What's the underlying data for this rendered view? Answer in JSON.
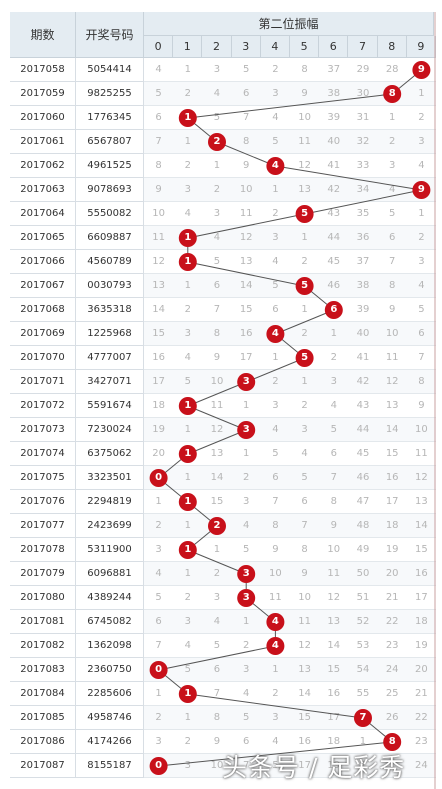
{
  "header": {
    "period_label": "期数",
    "number_label": "开奖号码",
    "title": "第二位振幅",
    "digits": [
      "0",
      "1",
      "2",
      "3",
      "4",
      "5",
      "6",
      "7",
      "8",
      "9"
    ]
  },
  "colors": {
    "ball": "#c8101a",
    "line": "#555555",
    "header_bg": "#e4ecf2"
  },
  "chart_data": {
    "type": "table",
    "title": "第二位振幅",
    "columns": [
      "0",
      "1",
      "2",
      "3",
      "4",
      "5",
      "6",
      "7",
      "8",
      "9"
    ],
    "rows": [
      {
        "period": "2017058",
        "number": "5054414",
        "value": 9,
        "cells": [
          "4",
          "1",
          "3",
          "5",
          "2",
          "8",
          "37",
          "29",
          "28",
          "9"
        ]
      },
      {
        "period": "2017059",
        "number": "9825255",
        "value": 8,
        "cells": [
          "5",
          "2",
          "4",
          "6",
          "3",
          "9",
          "38",
          "30",
          "8",
          "1"
        ]
      },
      {
        "period": "2017060",
        "number": "1776345",
        "value": 1,
        "cells": [
          "6",
          "1",
          "5",
          "7",
          "4",
          "10",
          "39",
          "31",
          "1",
          "2"
        ]
      },
      {
        "period": "2017061",
        "number": "6567807",
        "value": 2,
        "cells": [
          "7",
          "1",
          "2",
          "8",
          "5",
          "11",
          "40",
          "32",
          "2",
          "3"
        ]
      },
      {
        "period": "2017062",
        "number": "4961525",
        "value": 4,
        "cells": [
          "8",
          "2",
          "1",
          "9",
          "4",
          "12",
          "41",
          "33",
          "3",
          "4"
        ]
      },
      {
        "period": "2017063",
        "number": "9078693",
        "value": 9,
        "cells": [
          "9",
          "3",
          "2",
          "10",
          "1",
          "13",
          "42",
          "34",
          "4",
          "9"
        ]
      },
      {
        "period": "2017064",
        "number": "5550082",
        "value": 5,
        "cells": [
          "10",
          "4",
          "3",
          "11",
          "2",
          "5",
          "43",
          "35",
          "5",
          "1"
        ]
      },
      {
        "period": "2017065",
        "number": "6609887",
        "value": 1,
        "cells": [
          "11",
          "1",
          "4",
          "12",
          "3",
          "1",
          "44",
          "36",
          "6",
          "2"
        ]
      },
      {
        "period": "2017066",
        "number": "4560789",
        "value": 1,
        "cells": [
          "12",
          "1",
          "5",
          "13",
          "4",
          "2",
          "45",
          "37",
          "7",
          "3"
        ]
      },
      {
        "period": "2017067",
        "number": "0030793",
        "value": 5,
        "cells": [
          "13",
          "1",
          "6",
          "14",
          "5",
          "5",
          "46",
          "38",
          "8",
          "4"
        ]
      },
      {
        "period": "2017068",
        "number": "3635318",
        "value": 6,
        "cells": [
          "14",
          "2",
          "7",
          "15",
          "6",
          "1",
          "6",
          "39",
          "9",
          "5"
        ]
      },
      {
        "period": "2017069",
        "number": "1225968",
        "value": 4,
        "cells": [
          "15",
          "3",
          "8",
          "16",
          "4",
          "2",
          "1",
          "40",
          "10",
          "6"
        ]
      },
      {
        "period": "2017070",
        "number": "4777007",
        "value": 5,
        "cells": [
          "16",
          "4",
          "9",
          "17",
          "1",
          "5",
          "2",
          "41",
          "11",
          "7"
        ]
      },
      {
        "period": "2017071",
        "number": "3427071",
        "value": 3,
        "cells": [
          "17",
          "5",
          "10",
          "3",
          "2",
          "1",
          "3",
          "42",
          "12",
          "8"
        ]
      },
      {
        "period": "2017072",
        "number": "5591674",
        "value": 1,
        "cells": [
          "18",
          "1",
          "11",
          "1",
          "3",
          "2",
          "4",
          "43",
          "13",
          "9"
        ]
      },
      {
        "period": "2017073",
        "number": "7230024",
        "value": 3,
        "cells": [
          "19",
          "1",
          "12",
          "3",
          "4",
          "3",
          "5",
          "44",
          "14",
          "10"
        ]
      },
      {
        "period": "2017074",
        "number": "6375062",
        "value": 1,
        "cells": [
          "20",
          "1",
          "13",
          "1",
          "5",
          "4",
          "6",
          "45",
          "15",
          "11"
        ]
      },
      {
        "period": "2017075",
        "number": "3323501",
        "value": 0,
        "cells": [
          "0",
          "1",
          "14",
          "2",
          "6",
          "5",
          "7",
          "46",
          "16",
          "12"
        ]
      },
      {
        "period": "2017076",
        "number": "2294819",
        "value": 1,
        "cells": [
          "1",
          "1",
          "15",
          "3",
          "7",
          "6",
          "8",
          "47",
          "17",
          "13"
        ]
      },
      {
        "period": "2017077",
        "number": "2423699",
        "value": 2,
        "cells": [
          "2",
          "1",
          "2",
          "4",
          "8",
          "7",
          "9",
          "48",
          "18",
          "14"
        ]
      },
      {
        "period": "2017078",
        "number": "5311900",
        "value": 1,
        "cells": [
          "3",
          "1",
          "1",
          "5",
          "9",
          "8",
          "10",
          "49",
          "19",
          "15"
        ]
      },
      {
        "period": "2017079",
        "number": "6096881",
        "value": 3,
        "cells": [
          "4",
          "1",
          "2",
          "3",
          "10",
          "9",
          "11",
          "50",
          "20",
          "16"
        ]
      },
      {
        "period": "2017080",
        "number": "4389244",
        "value": 3,
        "cells": [
          "5",
          "2",
          "3",
          "3",
          "11",
          "10",
          "12",
          "51",
          "21",
          "17"
        ]
      },
      {
        "period": "2017081",
        "number": "6745082",
        "value": 4,
        "cells": [
          "6",
          "3",
          "4",
          "1",
          "4",
          "11",
          "13",
          "52",
          "22",
          "18"
        ]
      },
      {
        "period": "2017082",
        "number": "1362098",
        "value": 4,
        "cells": [
          "7",
          "4",
          "5",
          "2",
          "4",
          "12",
          "14",
          "53",
          "23",
          "19"
        ]
      },
      {
        "period": "2017083",
        "number": "2360750",
        "value": 0,
        "cells": [
          "0",
          "5",
          "6",
          "3",
          "1",
          "13",
          "15",
          "54",
          "24",
          "20"
        ]
      },
      {
        "period": "2017084",
        "number": "2285606",
        "value": 1,
        "cells": [
          "1",
          "1",
          "7",
          "4",
          "2",
          "14",
          "16",
          "55",
          "25",
          "21"
        ]
      },
      {
        "period": "2017085",
        "number": "4958746",
        "value": 7,
        "cells": [
          "2",
          "1",
          "8",
          "5",
          "3",
          "15",
          "17",
          "7",
          "26",
          "22"
        ]
      },
      {
        "period": "2017086",
        "number": "4174266",
        "value": 8,
        "cells": [
          "3",
          "2",
          "9",
          "6",
          "4",
          "16",
          "18",
          "1",
          "8",
          "23"
        ]
      },
      {
        "period": "2017087",
        "number": "8155187",
        "value": 0,
        "cells": [
          "0",
          "3",
          "10",
          "7",
          "5",
          "17",
          "19",
          "2",
          "1",
          "24"
        ]
      }
    ]
  },
  "watermark": "头条号 / 足彩秀"
}
